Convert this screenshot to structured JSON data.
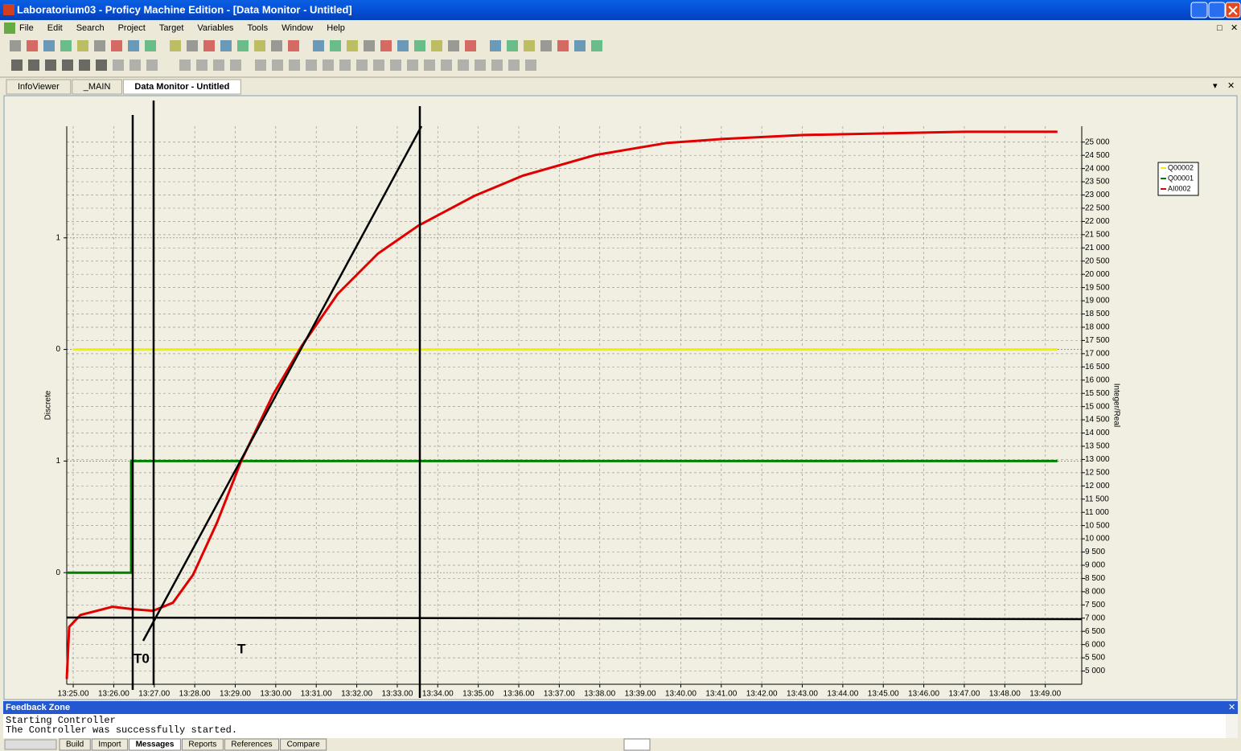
{
  "window": {
    "title": "Laboratorium03 - Proficy Machine Edition - [Data Monitor - Untitled]"
  },
  "menu": [
    "File",
    "Edit",
    "Search",
    "Project",
    "Target",
    "Variables",
    "Tools",
    "Window",
    "Help"
  ],
  "tabs": [
    "InfoViewer",
    "_MAIN",
    "Data Monitor - Untitled"
  ],
  "chart_data": {
    "type": "line",
    "y_label": "Discrete",
    "y2_label": "Integer/Real",
    "xlim": [
      804.84,
      829.9
    ],
    "xticks": [
      {
        "value": 805,
        "label": "13:25.00"
      },
      {
        "value": 806,
        "label": "13:26.00"
      },
      {
        "value": 807,
        "label": "13:27.00"
      },
      {
        "value": 808,
        "label": "13:28.00"
      },
      {
        "value": 809,
        "label": "13:29.00"
      },
      {
        "value": 810,
        "label": "13:30.00"
      },
      {
        "value": 811,
        "label": "13:31.00"
      },
      {
        "value": 812,
        "label": "13:32.00"
      },
      {
        "value": 813,
        "label": "13:33.00"
      },
      {
        "value": 814,
        "label": "13:34.00"
      },
      {
        "value": 815,
        "label": "13:35.00"
      },
      {
        "value": 816,
        "label": "13:36.00"
      },
      {
        "value": 817,
        "label": "13:37.00"
      },
      {
        "value": 818,
        "label": "13:38.00"
      },
      {
        "value": 819,
        "label": "13:39.00"
      },
      {
        "value": 820,
        "label": "13:40.00"
      },
      {
        "value": 821,
        "label": "13:41.00"
      },
      {
        "value": 822,
        "label": "13:42.00"
      },
      {
        "value": 823,
        "label": "13:43.00"
      },
      {
        "value": 824,
        "label": "13:44.00"
      },
      {
        "value": 825,
        "label": "13:45.00"
      },
      {
        "value": 826,
        "label": "13:46.00"
      },
      {
        "value": 827,
        "label": "13:47.00"
      },
      {
        "value": 828,
        "label": "13:48.00"
      },
      {
        "value": 829,
        "label": "13:49.00"
      }
    ],
    "ylim": [
      -1,
      4
    ],
    "yticks": [
      0,
      1,
      {
        "value": 2,
        "label": "0"
      },
      {
        "value": 3,
        "label": "1"
      }
    ],
    "y2lim": [
      4500,
      25600
    ],
    "y2ticks": [
      {
        "value": 5000,
        "label": "5 000"
      },
      {
        "value": 5500,
        "label": "5 500"
      },
      {
        "value": 6000,
        "label": "6 000"
      },
      {
        "value": 6500,
        "label": "6 500"
      },
      {
        "value": 7000,
        "label": "7 000"
      },
      {
        "value": 7500,
        "label": "7 500"
      },
      {
        "value": 8000,
        "label": "8 000"
      },
      {
        "value": 8500,
        "label": "8 500"
      },
      {
        "value": 9000,
        "label": "9 000"
      },
      {
        "value": 9500,
        "label": "9 500"
      },
      {
        "value": 10000,
        "label": "10 000"
      },
      {
        "value": 10500,
        "label": "10 500"
      },
      {
        "value": 11000,
        "label": "11 000"
      },
      {
        "value": 11500,
        "label": "11 500"
      },
      {
        "value": 12000,
        "label": "12 000"
      },
      {
        "value": 12500,
        "label": "12 500"
      },
      {
        "value": 13000,
        "label": "13 000"
      },
      {
        "value": 13500,
        "label": "13 500"
      },
      {
        "value": 14000,
        "label": "14 000"
      },
      {
        "value": 14500,
        "label": "14 500"
      },
      {
        "value": 15000,
        "label": "15 000"
      },
      {
        "value": 15500,
        "label": "15 500"
      },
      {
        "value": 16000,
        "label": "16 000"
      },
      {
        "value": 16500,
        "label": "16 500"
      },
      {
        "value": 17000,
        "label": "17 000"
      },
      {
        "value": 17500,
        "label": "17 500"
      },
      {
        "value": 18000,
        "label": "18 000"
      },
      {
        "value": 18500,
        "label": "18 500"
      },
      {
        "value": 19000,
        "label": "19 000"
      },
      {
        "value": 19500,
        "label": "19 500"
      },
      {
        "value": 20000,
        "label": "20 000"
      },
      {
        "value": 20500,
        "label": "20 500"
      },
      {
        "value": 21000,
        "label": "21 000"
      },
      {
        "value": 21500,
        "label": "21 500"
      },
      {
        "value": 22000,
        "label": "22 000"
      },
      {
        "value": 22500,
        "label": "22 500"
      },
      {
        "value": 23000,
        "label": "23 000"
      },
      {
        "value": 23500,
        "label": "23 500"
      },
      {
        "value": 24000,
        "label": "24 000"
      },
      {
        "value": 24500,
        "label": "24 500"
      },
      {
        "value": 25000,
        "label": "25 000"
      }
    ],
    "grid": true,
    "legend": "top-right",
    "series": [
      {
        "name": "Q00002",
        "color": "#f0f000",
        "x": [
          804.99,
          829.3
        ],
        "values": [
          2,
          2
        ]
      },
      {
        "name": "Q00001",
        "color": "#008000",
        "x": [
          804.84,
          806.43,
          806.43,
          829.3
        ],
        "values": [
          0,
          0,
          1,
          1
        ]
      },
      {
        "name": "AI0002",
        "color": "#e00000",
        "axis": "y2",
        "x": [
          804.84,
          804.9,
          805.18,
          805.97,
          806.47,
          806.97,
          807.46,
          807.96,
          808.55,
          809.15,
          809.94,
          810.64,
          811.53,
          812.52,
          813.52,
          814.91,
          816.1,
          817.88,
          819.67,
          821.06,
          823.04,
          825.03,
          827.01,
          829.3
        ],
        "values": [
          4700,
          6670,
          7120,
          7430,
          7340,
          7280,
          7580,
          8640,
          10610,
          12950,
          15470,
          17290,
          19260,
          20780,
          21840,
          22970,
          23730,
          24510,
          24970,
          25120,
          25270,
          25330,
          25390,
          25390
        ]
      }
    ],
    "annotations": [
      "T0",
      "T"
    ]
  },
  "feedback": {
    "title": "Feedback Zone",
    "messages": [
      "Starting Controller",
      "The Controller was successfully started."
    ]
  },
  "bottom_tabs": [
    "Build",
    "Import",
    "Messages",
    "Reports",
    "References",
    "Compare"
  ]
}
